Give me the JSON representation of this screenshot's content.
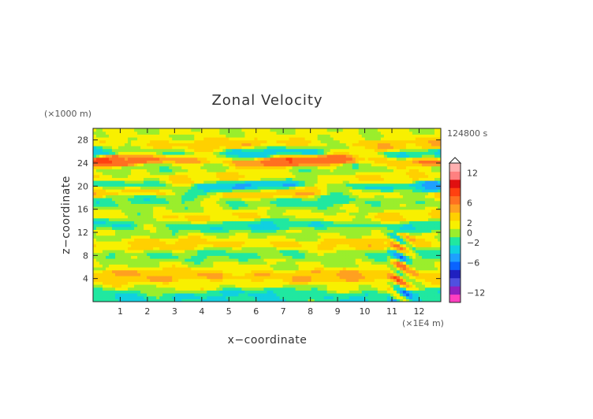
{
  "chart_data": {
    "type": "heatmap",
    "title": "Zonal Velocity",
    "xlabel": "x−coordinate",
    "ylabel": "z−coordinate",
    "x_unit": "(×1E4 m)",
    "y_unit": "(×1000 m)",
    "time_label": "124800 s",
    "xlim": [
      0,
      12.8
    ],
    "ylim": [
      0,
      30
    ],
    "x_ticks": [
      "1",
      "2",
      "3",
      "4",
      "5",
      "6",
      "7",
      "8",
      "9",
      "10",
      "11",
      "12"
    ],
    "y_ticks": [
      "4",
      "8",
      "12",
      "16",
      "20",
      "24",
      "28"
    ],
    "colorbar": {
      "labels": [
        "12",
        "6",
        "2",
        "0",
        "−2",
        "−6",
        "−12"
      ],
      "range": [
        -14,
        14
      ],
      "colors": [
        "#ff3fc0",
        "#9020c0",
        "#5050e0",
        "#2020c0",
        "#0a64ff",
        "#1ea0ff",
        "#10d0e0",
        "#20e8a0",
        "#9aee2c",
        "#f8f000",
        "#ffd000",
        "#ffa020",
        "#ff7020",
        "#ff4010",
        "#e01010",
        "#ff8080",
        "#ffb0b0"
      ]
    },
    "bands": [
      {
        "z": 1.3,
        "u": -2.5
      },
      {
        "z": 2.8,
        "u": 1.5
      },
      {
        "z": 4.5,
        "u": 4.0
      },
      {
        "z": 6.5,
        "u": 0.8
      },
      {
        "z": 8.2,
        "u": -1.0
      },
      {
        "z": 10.0,
        "u": 3.0
      },
      {
        "z": 11.8,
        "u": 0.5
      },
      {
        "z": 13.3,
        "u": -2.5
      },
      {
        "z": 14.8,
        "u": 2.5
      },
      {
        "z": 16.2,
        "u": 0.3
      },
      {
        "z": 17.6,
        "u": -1.5
      },
      {
        "z": 18.9,
        "u": 4.0
      },
      {
        "z": 20.0,
        "u": -4.0
      },
      {
        "z": 21.5,
        "u": 2.5
      },
      {
        "z": 23.0,
        "u": 0.0
      },
      {
        "z": 24.5,
        "u": 7.0
      },
      {
        "z": 25.8,
        "u": -3.0
      },
      {
        "z": 27.2,
        "u": 3.5
      },
      {
        "z": 28.8,
        "u": 1.0
      }
    ]
  }
}
